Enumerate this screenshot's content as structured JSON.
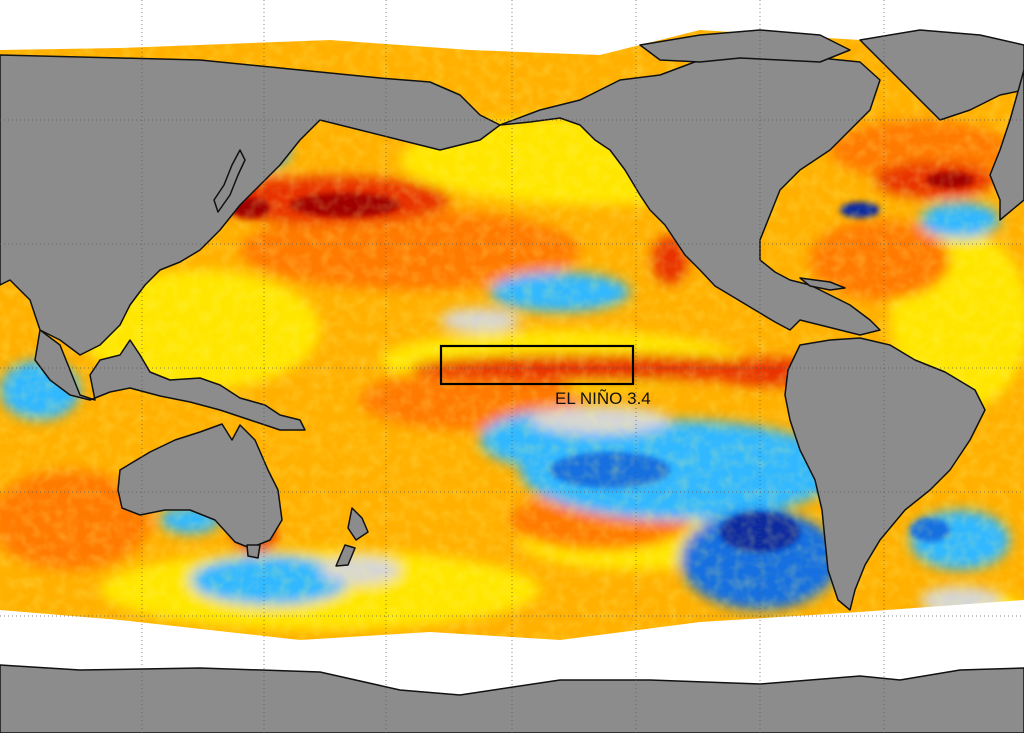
{
  "map": {
    "region_box": {
      "label": "EL NIÑO 3.4"
    },
    "colors": {
      "land": "#8c8c8c",
      "sea_ice": "#ffffff",
      "neutral": "#d6d6d6",
      "warm_light": "#ffe600",
      "warm": "#ffb000",
      "warmer": "#ff7a00",
      "hot": "#e83000",
      "hottest": "#a00000",
      "cool": "#30b8ff",
      "cooler": "#1470e0",
      "coldest": "#0a2aa0",
      "coastline": "#111111",
      "gridline": "#555555"
    }
  }
}
